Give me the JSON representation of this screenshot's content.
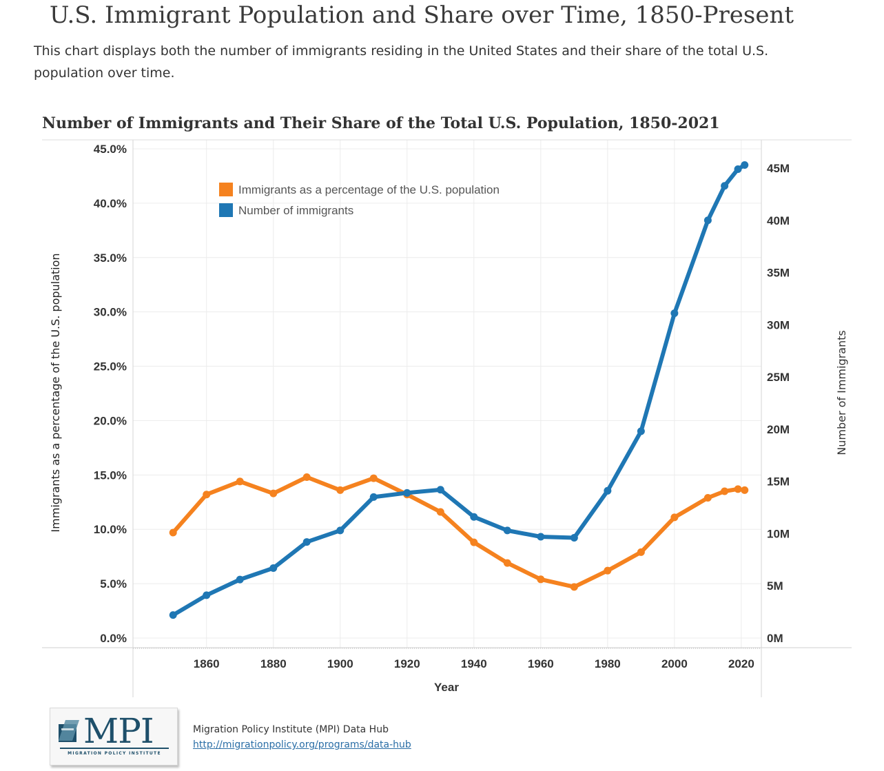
{
  "page": {
    "title": "U.S. Immigrant Population and Share over Time, 1850-Present",
    "description": "This chart displays both the number of immigrants residing in the United States and their share of the total U.S. population over time."
  },
  "chart_data": {
    "type": "line",
    "title": "Number of Immigrants and Their Share of the Total U.S. Population, 1850-2021",
    "xlabel": "Year",
    "ylabel_left": "Immigrants as a percentage of the U.S. population",
    "ylabel_right": "Number of Immigrants",
    "x_ticks": [
      "1860",
      "1880",
      "1900",
      "1920",
      "1940",
      "1960",
      "1980",
      "2000",
      "2020"
    ],
    "y_left_ticks": [
      "0.0%",
      "5.0%",
      "10.0%",
      "15.0%",
      "20.0%",
      "25.0%",
      "30.0%",
      "35.0%",
      "40.0%",
      "45.0%"
    ],
    "y_right_ticks": [
      "0M",
      "5M",
      "10M",
      "15M",
      "20M",
      "25M",
      "30M",
      "35M",
      "40M",
      "45M"
    ],
    "xlim": [
      1838,
      2026
    ],
    "ylim_left": [
      0,
      45
    ],
    "ylim_right": [
      0,
      47
    ],
    "x": [
      1850,
      1860,
      1870,
      1880,
      1890,
      1900,
      1910,
      1920,
      1930,
      1940,
      1950,
      1960,
      1970,
      1980,
      1990,
      2000,
      2010,
      2015,
      2019,
      2021
    ],
    "legend_position": "top-left",
    "grid": true,
    "series": [
      {
        "name": "Immigrants as a percentage of the U.S. population",
        "axis": "left",
        "color": "#f5821f",
        "values": [
          9.7,
          13.2,
          14.4,
          13.3,
          14.8,
          13.6,
          14.7,
          13.2,
          11.6,
          8.8,
          6.9,
          5.4,
          4.7,
          6.2,
          7.9,
          11.1,
          12.9,
          13.5,
          13.7,
          13.6
        ]
      },
      {
        "name": "Number of immigrants",
        "axis": "right",
        "color": "#1f77b4",
        "values": [
          2.2,
          4.1,
          5.6,
          6.7,
          9.2,
          10.3,
          13.5,
          13.9,
          14.2,
          11.6,
          10.3,
          9.7,
          9.6,
          14.1,
          19.8,
          31.1,
          40.0,
          43.3,
          44.9,
          45.3
        ]
      }
    ]
  },
  "footer": {
    "logo_text": "MPI",
    "logo_subtext": "MIGRATION POLICY INSTITUTE",
    "source": "Migration Policy Institute (MPI) Data Hub",
    "link": "http://migrationpolicy.org/programs/data-hub"
  },
  "colors": {
    "orange": "#f5821f",
    "blue": "#1f77b4",
    "brand": "#1e4f6a"
  }
}
